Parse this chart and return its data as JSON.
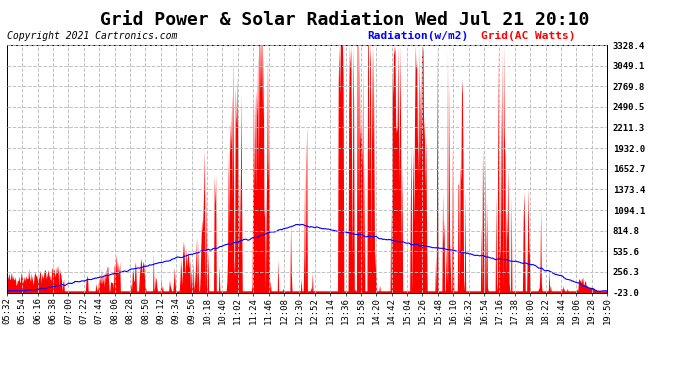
{
  "title": "Grid Power & Solar Radiation Wed Jul 21 20:10",
  "copyright": "Copyright 2021 Cartronics.com",
  "legend_radiation": "Radiation(w/m2)",
  "legend_grid": "Grid(AC Watts)",
  "bg_color": "#ffffff",
  "plot_bg_color": "#ffffff",
  "grid_color": "#bbbbbb",
  "radiation_color": "#ff0000",
  "grid_line_color": "#0000ff",
  "right_yticks": [
    3328.4,
    3049.1,
    2769.8,
    2490.5,
    2211.3,
    1932.0,
    1652.7,
    1373.4,
    1094.1,
    814.8,
    535.6,
    256.3,
    -23.0
  ],
  "ymin": -23.0,
  "ymax": 3328.4,
  "title_fontsize": 13,
  "copyright_fontsize": 7,
  "legend_fontsize": 8,
  "tick_fontsize": 6.5
}
